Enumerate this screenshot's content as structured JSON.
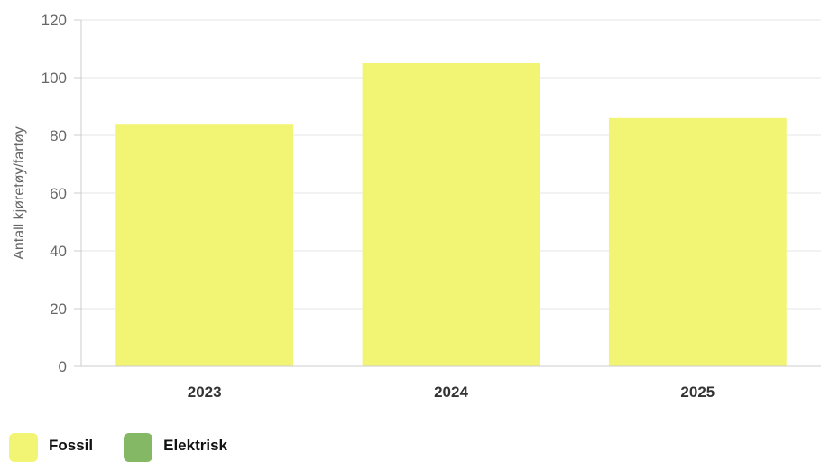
{
  "chart_data": {
    "type": "bar",
    "categories": [
      "2023",
      "2024",
      "2025"
    ],
    "series": [
      {
        "name": "Fossil",
        "color": "#f2f573",
        "values": [
          84,
          105,
          86
        ]
      },
      {
        "name": "Elektrisk",
        "color": "#84b865",
        "values": [
          0,
          0,
          0
        ]
      }
    ],
    "title": "",
    "xlabel": "",
    "ylabel": "Antall kjøretøy/fartøy",
    "ylim": [
      0,
      120
    ],
    "yticks": [
      0,
      20,
      40,
      60,
      80,
      100,
      120
    ],
    "grid": true,
    "legend_position": "bottom-left"
  },
  "legend": {
    "items": [
      {
        "label": "Fossil",
        "color": "#f2f573"
      },
      {
        "label": "Elektrisk",
        "color": "#84b865"
      }
    ]
  }
}
